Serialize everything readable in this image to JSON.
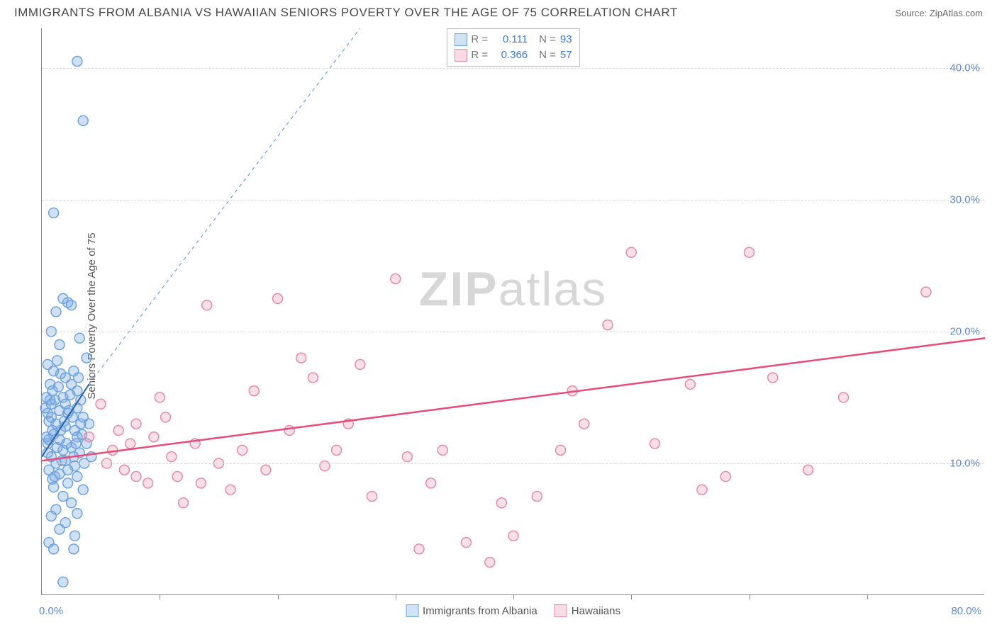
{
  "header": {
    "title": "IMMIGRANTS FROM ALBANIA VS HAWAIIAN SENIORS POVERTY OVER THE AGE OF 75 CORRELATION CHART",
    "source_label": "Source:",
    "source_name": "ZipAtlas.com"
  },
  "chart": {
    "type": "scatter",
    "y_axis_label": "Seniors Poverty Over the Age of 75",
    "xlim": [
      0,
      80
    ],
    "ylim": [
      0,
      43
    ],
    "y_ticks": [
      10,
      20,
      30,
      40
    ],
    "y_tick_labels": [
      "10.0%",
      "20.0%",
      "30.0%",
      "40.0%"
    ],
    "x_minor_ticks": [
      10,
      20,
      30,
      40,
      50,
      60,
      70
    ],
    "x_tick_labels": {
      "start": "0.0%",
      "end": "80.0%"
    },
    "background_color": "#ffffff",
    "grid_color": "#d8d8d8",
    "axis_color": "#888888",
    "marker_radius": 7,
    "marker_stroke_width": 1.5,
    "series": [
      {
        "name": "Immigrants from Albania",
        "color_fill": "rgba(120,170,230,0.35)",
        "color_stroke": "#6fa3db",
        "swatch_fill": "#cfe2f6",
        "swatch_stroke": "#6fa3db",
        "r_value": "0.111",
        "n_value": "93",
        "trend_solid": {
          "x1": 0,
          "y1": 10.5,
          "x2": 4,
          "y2": 16.0,
          "stroke": "#2b5fa8",
          "width": 2
        },
        "trend_dashed": {
          "x1": 4,
          "y1": 16.0,
          "x2": 27,
          "y2": 43.0,
          "stroke": "#6fa3db",
          "width": 1.2,
          "dash": "5,5"
        },
        "points": [
          [
            3.0,
            40.5
          ],
          [
            3.5,
            36.0
          ],
          [
            1.0,
            29.0
          ],
          [
            1.8,
            22.5
          ],
          [
            2.2,
            22.2
          ],
          [
            2.5,
            22.0
          ],
          [
            1.2,
            21.5
          ],
          [
            0.8,
            20.0
          ],
          [
            1.5,
            19.0
          ],
          [
            3.2,
            19.5
          ],
          [
            3.8,
            18.0
          ],
          [
            0.5,
            17.5
          ],
          [
            1.0,
            17.0
          ],
          [
            2.0,
            16.5
          ],
          [
            2.5,
            16.0
          ],
          [
            3.0,
            15.5
          ],
          [
            1.8,
            15.0
          ],
          [
            0.8,
            14.5
          ],
          [
            1.5,
            14.0
          ],
          [
            2.2,
            13.8
          ],
          [
            3.5,
            13.5
          ],
          [
            0.6,
            13.2
          ],
          [
            1.2,
            13.0
          ],
          [
            2.0,
            12.8
          ],
          [
            2.8,
            12.5
          ],
          [
            1.0,
            12.2
          ],
          [
            3.0,
            12.0
          ],
          [
            1.5,
            11.8
          ],
          [
            0.5,
            11.5
          ],
          [
            2.5,
            11.2
          ],
          [
            1.8,
            11.0
          ],
          [
            3.2,
            10.8
          ],
          [
            0.8,
            10.5
          ],
          [
            2.0,
            10.2
          ],
          [
            1.2,
            10.0
          ],
          [
            2.8,
            9.8
          ],
          [
            0.6,
            9.5
          ],
          [
            1.5,
            9.2
          ],
          [
            3.0,
            9.0
          ],
          [
            0.9,
            8.8
          ],
          [
            2.2,
            8.5
          ],
          [
            1.0,
            8.2
          ],
          [
            3.5,
            8.0
          ],
          [
            1.8,
            7.5
          ],
          [
            0.5,
            13.8
          ],
          [
            2.5,
            7.0
          ],
          [
            1.2,
            6.5
          ],
          [
            3.0,
            6.2
          ],
          [
            0.8,
            6.0
          ],
          [
            2.0,
            5.5
          ],
          [
            1.5,
            5.0
          ],
          [
            2.8,
            4.5
          ],
          [
            0.6,
            4.0
          ],
          [
            1.0,
            3.5
          ],
          [
            2.7,
            3.5
          ],
          [
            1.8,
            1.0
          ],
          [
            2.0,
            14.5
          ],
          [
            4.0,
            13.0
          ],
          [
            3.8,
            11.5
          ],
          [
            4.2,
            10.5
          ],
          [
            0.4,
            12.0
          ],
          [
            0.7,
            16.0
          ],
          [
            1.3,
            17.8
          ],
          [
            2.7,
            17.0
          ],
          [
            3.3,
            14.8
          ],
          [
            0.9,
            15.5
          ],
          [
            1.6,
            12.5
          ],
          [
            2.3,
            14.0
          ],
          [
            0.5,
            10.8
          ],
          [
            1.1,
            9.0
          ],
          [
            2.6,
            13.5
          ],
          [
            3.4,
            12.2
          ],
          [
            0.3,
            14.2
          ],
          [
            1.7,
            10.2
          ],
          [
            2.9,
            11.5
          ],
          [
            0.8,
            13.5
          ],
          [
            1.4,
            15.8
          ],
          [
            2.1,
            11.5
          ],
          [
            3.1,
            16.5
          ],
          [
            0.6,
            11.8
          ],
          [
            1.9,
            13.2
          ],
          [
            2.4,
            15.2
          ],
          [
            3.6,
            10.0
          ],
          [
            0.4,
            15.0
          ],
          [
            1.1,
            14.8
          ],
          [
            2.7,
            10.5
          ],
          [
            3.3,
            13.0
          ],
          [
            0.9,
            12.5
          ],
          [
            1.6,
            16.8
          ],
          [
            2.2,
            9.5
          ],
          [
            3.0,
            14.2
          ],
          [
            0.7,
            14.8
          ],
          [
            1.3,
            11.2
          ]
        ]
      },
      {
        "name": "Hawaiians",
        "color_fill": "rgba(235,150,175,0.30)",
        "color_stroke": "#e48ba8",
        "swatch_fill": "#f8dbe4",
        "swatch_stroke": "#e48ba8",
        "r_value": "0.366",
        "n_value": "57",
        "trend_solid": {
          "x1": 0,
          "y1": 10.2,
          "x2": 80,
          "y2": 19.5,
          "stroke": "#e94b7a",
          "width": 2.5
        },
        "points": [
          [
            4.0,
            12.0
          ],
          [
            5.0,
            14.5
          ],
          [
            6.0,
            11.0
          ],
          [
            7.0,
            9.5
          ],
          [
            8.0,
            13.0
          ],
          [
            9.0,
            8.5
          ],
          [
            10.0,
            15.0
          ],
          [
            11.0,
            10.5
          ],
          [
            12.0,
            7.0
          ],
          [
            13.0,
            11.5
          ],
          [
            14.0,
            22.0
          ],
          [
            8.0,
            9.0
          ],
          [
            6.5,
            12.5
          ],
          [
            10.5,
            13.5
          ],
          [
            15.0,
            10.0
          ],
          [
            16.0,
            8.0
          ],
          [
            18.0,
            15.5
          ],
          [
            20.0,
            22.5
          ],
          [
            22.0,
            18.0
          ],
          [
            23.0,
            16.5
          ],
          [
            24.0,
            9.8
          ],
          [
            25.0,
            11.0
          ],
          [
            27.0,
            17.5
          ],
          [
            28.0,
            7.5
          ],
          [
            30.0,
            24.0
          ],
          [
            31.0,
            10.5
          ],
          [
            32.0,
            3.5
          ],
          [
            34.0,
            11.0
          ],
          [
            36.0,
            4.0
          ],
          [
            38.0,
            2.5
          ],
          [
            39.0,
            7.0
          ],
          [
            40.0,
            4.5
          ],
          [
            42.0,
            7.5
          ],
          [
            44.0,
            11.0
          ],
          [
            45.0,
            15.5
          ],
          [
            48.0,
            20.5
          ],
          [
            50.0,
            26.0
          ],
          [
            52.0,
            11.5
          ],
          [
            55.0,
            16.0
          ],
          [
            56.0,
            8.0
          ],
          [
            58.0,
            9.0
          ],
          [
            60.0,
            26.0
          ],
          [
            62.0,
            16.5
          ],
          [
            65.0,
            9.5
          ],
          [
            68.0,
            15.0
          ],
          [
            75.0,
            23.0
          ],
          [
            5.5,
            10.0
          ],
          [
            7.5,
            11.5
          ],
          [
            9.5,
            12.0
          ],
          [
            11.5,
            9.0
          ],
          [
            13.5,
            8.5
          ],
          [
            17.0,
            11.0
          ],
          [
            19.0,
            9.5
          ],
          [
            21.0,
            12.5
          ],
          [
            26.0,
            13.0
          ],
          [
            33.0,
            8.5
          ],
          [
            46.0,
            13.0
          ]
        ]
      }
    ],
    "legend_top_labels": {
      "r_prefix": "R =",
      "n_prefix": "N ="
    },
    "watermark": "ZIPatlas"
  }
}
